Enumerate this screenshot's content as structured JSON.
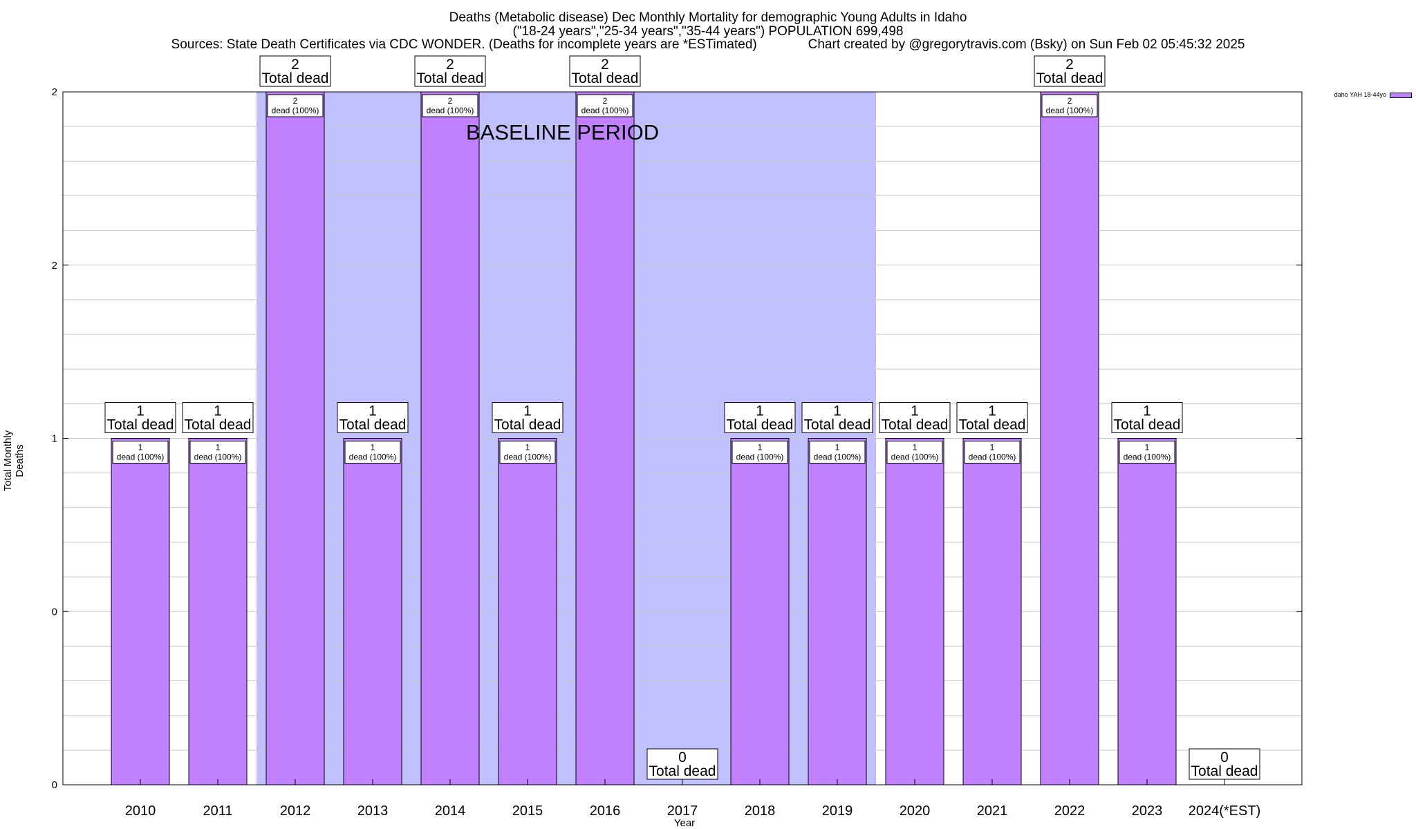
{
  "title_lines": [
    "Deaths (Metabolic disease) Dec Monthly Mortality for demographic Young Adults in Idaho",
    "(\"18-24 years\",\"25-34 years\",\"35-44 years\") POPULATION 699,498",
    "Sources: State Death Certificates via CDC WONDER. (Deaths for incomplete years are *ESTimated)              Chart created by @gregorytravis.com (Bsky) on Sun Feb 02 05:45:32 2025"
  ],
  "legend_label": "daho YAH 18-44yo",
  "baseline_label": "BASELINE PERIOD",
  "colors": {
    "bar": "#c080ff",
    "baseline_band": "#c0c0ff",
    "grid": "#c8c8c8"
  },
  "chart_data": {
    "type": "bar",
    "xlabel": "Year",
    "ylabel": "Total Monthly Deaths",
    "ylim": [
      0,
      2
    ],
    "y_ticks": [
      0,
      0.5,
      1,
      1.5,
      2
    ],
    "y_tick_labels": [
      "0",
      "0",
      "1",
      "2",
      "2"
    ],
    "grid": true,
    "legend_position": "top-right",
    "categories": [
      "2010",
      "2011",
      "2012",
      "2013",
      "2014",
      "2015",
      "2016",
      "2017",
      "2018",
      "2019",
      "2020",
      "2021",
      "2022",
      "2023",
      "2024(*EST)"
    ],
    "series": [
      {
        "name": "daho YAH 18-44yo",
        "values": [
          1,
          1,
          2,
          1,
          2,
          1,
          2,
          0,
          1,
          1,
          1,
          1,
          2,
          1,
          0
        ]
      }
    ],
    "total_labels": [
      "1\nTotal dead",
      "1\nTotal dead",
      "2\nTotal dead",
      "1\nTotal dead",
      "2\nTotal dead",
      "1\nTotal dead",
      "2\nTotal dead",
      "0\nTotal dead",
      "1\nTotal dead",
      "1\nTotal dead",
      "1\nTotal dead",
      "1\nTotal dead",
      "2\nTotal dead",
      "1\nTotal dead",
      "0\nTotal dead"
    ],
    "bar_labels": [
      "1\ndead (100%)",
      "1\ndead (100%)",
      "2\ndead (100%)",
      "1\ndead (100%)",
      "2\ndead (100%)",
      "1\ndead (100%)",
      "2\ndead (100%)",
      "",
      "1\ndead (100%)",
      "1\ndead (100%)",
      "1\ndead (100%)",
      "1\ndead (100%)",
      "2\ndead (100%)",
      "1\ndead (100%)",
      ""
    ],
    "baseline_period": {
      "label": "BASELINE PERIOD",
      "start": "2012",
      "end": "2019"
    }
  }
}
